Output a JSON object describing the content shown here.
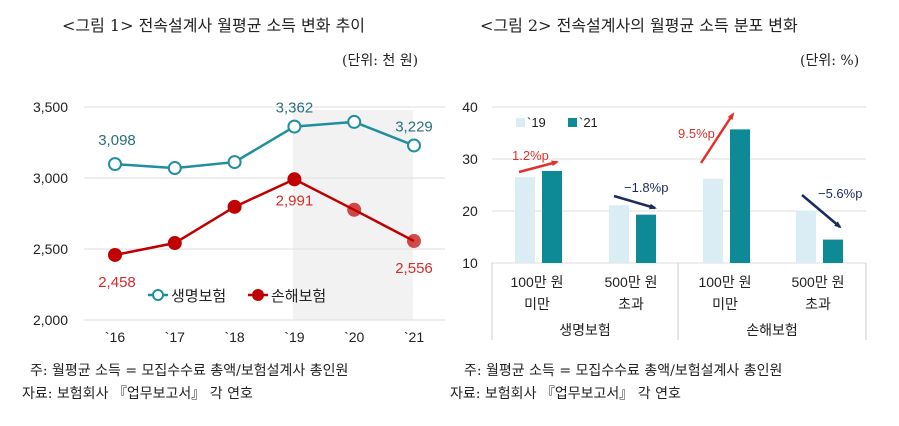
{
  "chart_data": [
    {
      "type": "line",
      "title": "<그림 1> 전속설계사 월평균 소득 변화 추이",
      "unit": "(단위: 천 원)",
      "categories": [
        "`16",
        "`17",
        "`18",
        "`19",
        "`20",
        "`21"
      ],
      "ylim": [
        2000,
        3500
      ],
      "yticks": [
        "2,000",
        "2,500",
        "3,000",
        "3,500"
      ],
      "grid": true,
      "legend": "bottom-center",
      "series": [
        {
          "name": "생명보험",
          "values": [
            3098,
            3070,
            3112,
            3362,
            3395,
            3229
          ],
          "labels": [
            "3,098",
            "",
            "",
            "3,362",
            "",
            "3,229"
          ],
          "color": "#1f8fa0"
        },
        {
          "name": "손해보험",
          "values": [
            2458,
            2542,
            2797,
            2991,
            2776,
            2556
          ],
          "labels": [
            "2,458",
            "",
            "",
            "2,991",
            "",
            "2,556"
          ],
          "color": "#c00000"
        }
      ],
      "highlight_range": [
        "`19",
        "`21"
      ],
      "notes": [
        "주: 월평균 소득 = 모집수수료 총액/보험설계사 총인원",
        "자료: 보험회사 『업무보고서』 각 연호"
      ]
    },
    {
      "type": "bar",
      "title": "<그림 2> 전속설계사의 월평균 소득 분포 변화",
      "unit": "(단위: %)",
      "groups": [
        {
          "name": "생명보험",
          "categories": [
            "100만 원\n미만",
            "500만 원\n초과"
          ]
        },
        {
          "name": "손해보험",
          "categories": [
            "100만 원\n미만",
            "500만 원\n초과"
          ]
        }
      ],
      "ylim": [
        10,
        40
      ],
      "yticks": [
        "10",
        "20",
        "30",
        "40"
      ],
      "grid": true,
      "legend": "top-left",
      "series": [
        {
          "name": "`19",
          "values": [
            26.5,
            21.1,
            26.2,
            20.1
          ],
          "color": "#daedf4"
        },
        {
          "name": "`21",
          "values": [
            27.7,
            19.3,
            35.7,
            14.5
          ],
          "color": "#0e8a96"
        }
      ],
      "annotations": [
        {
          "text": "1.2%p",
          "color": "#e0312f"
        },
        {
          "text": "−1.8%p",
          "color": "#1a2b5e"
        },
        {
          "text": "9.5%p",
          "color": "#e0312f"
        },
        {
          "text": "−5.6%p",
          "color": "#1a2b5e"
        }
      ],
      "notes": [
        "주: 월평균 소득 = 모집수수료 총액/보험설계사 총인원",
        "자료: 보험회사 『업무보고서』 각 연호"
      ]
    }
  ]
}
